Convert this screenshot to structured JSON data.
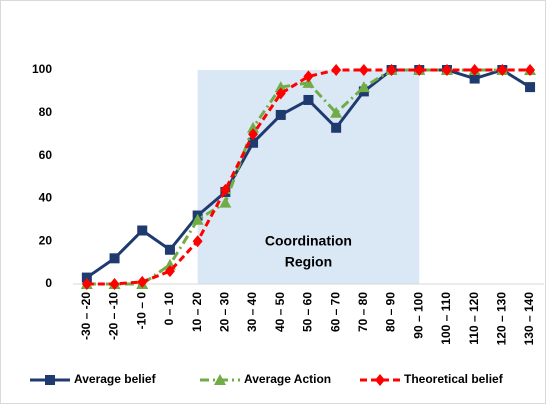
{
  "chart_data": {
    "type": "line",
    "categories": [
      "-30 – -20",
      "-20 – -10",
      "-10 – 0",
      "0 – 10",
      "10 – 20",
      "20 – 30",
      "30 – 40",
      "40 – 50",
      "50 – 60",
      "60 – 70",
      "70 – 80",
      "80 – 90",
      "90 – 100",
      "100 – 110",
      "110 – 120",
      "120 – 130",
      "130 – 140"
    ],
    "series": [
      {
        "name": "Average belief",
        "color": "#1f3a6e",
        "marker": "square",
        "dash": "solid",
        "values": [
          3,
          12,
          25,
          16,
          32,
          43,
          66,
          79,
          86,
          73,
          90,
          100,
          100,
          100,
          96,
          100,
          92
        ]
      },
      {
        "name": "Average Action",
        "color": "#70ad47",
        "marker": "triangle",
        "dash": "dashdot",
        "values": [
          0,
          0,
          0,
          9,
          30,
          38,
          73,
          92,
          94,
          80,
          92,
          100,
          100,
          100,
          100,
          100,
          100
        ]
      },
      {
        "name": "Theoretical belief",
        "color": "#ff0000",
        "marker": "diamond",
        "dash": "dashed",
        "values": [
          0,
          0,
          1,
          6,
          20,
          44,
          70,
          89,
          97,
          100,
          100,
          100,
          100,
          100,
          100,
          100,
          100
        ]
      }
    ],
    "ylim": [
      0,
      100
    ],
    "yticks": [
      0,
      20,
      40,
      60,
      80,
      100
    ],
    "grid": false,
    "shaded_region": {
      "from": 4,
      "to": 12,
      "color": "#dae7f5",
      "label_lines": [
        "Coordination",
        "Region"
      ]
    },
    "legend": "bottom"
  }
}
